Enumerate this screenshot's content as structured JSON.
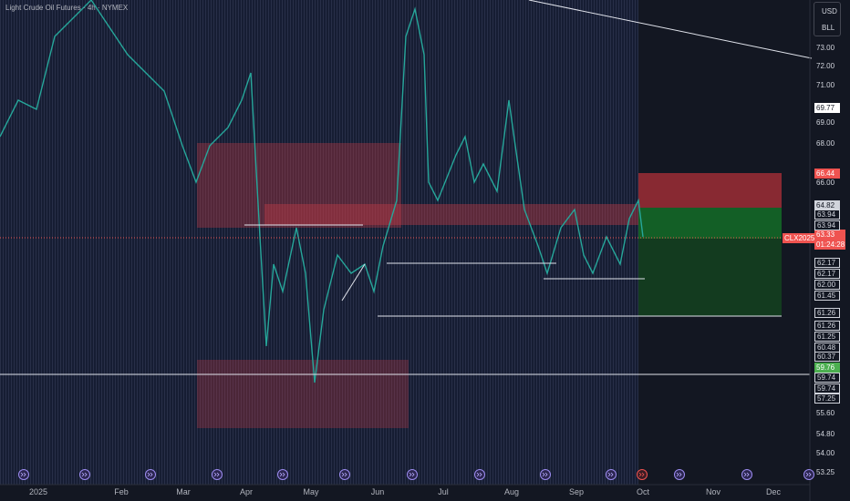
{
  "header": {
    "title": "Light Crude Oil Futures · 4h · NYMEX"
  },
  "price_axis": {
    "currency": "USD",
    "unit": "BLL",
    "labels": [
      "73.00",
      "72.00",
      "71.00",
      "69.77",
      "69.00",
      "68.00",
      "66.44",
      "66.00",
      "64.82",
      "63.94",
      "63.94",
      "62.17",
      "62.17",
      "62.00",
      "61.45",
      "61.26",
      "61.26",
      "61.25",
      "60.48",
      "60.37",
      "59.76",
      "59.74",
      "59.74",
      "57.25",
      "55.60",
      "54.80",
      "54.00",
      "53.25"
    ]
  },
  "current_price": {
    "symbol": "CLX2025",
    "price": "63.33",
    "countdown": "01:24:28"
  },
  "time_axis": {
    "labels": [
      "2025",
      "Feb",
      "Mar",
      "Apr",
      "May",
      "Jun",
      "Jul",
      "Aug",
      "Sep",
      "Oct",
      "Nov",
      "Dec"
    ]
  }
}
